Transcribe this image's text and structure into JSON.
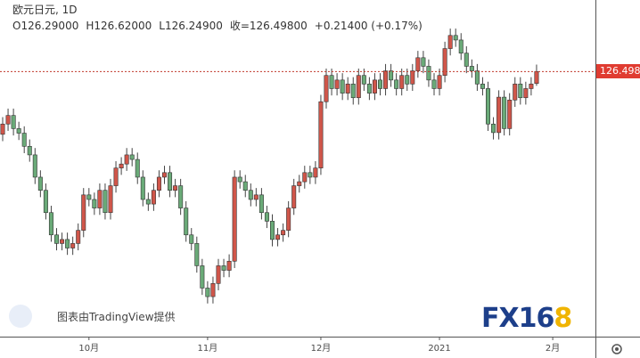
{
  "header": {
    "title": "欧元日元, 1D",
    "open": "O126.29000",
    "high": "H126.62000",
    "low": "L126.24900",
    "close": "收=126.49800",
    "change": "+0.21400 (+0.17%)"
  },
  "watermark": {
    "provider": "图表由TradingView提供",
    "brand_main": "FX16",
    "brand_end": "8"
  },
  "chart_data": {
    "type": "candlestick",
    "price_label": "126.498",
    "up_color": "#d0564a",
    "down_color": "#6aaa78",
    "ylim": [
      121.86,
      127.75
    ],
    "categories": [
      null,
      null,
      null,
      null,
      null,
      null,
      null,
      null,
      null,
      null,
      null,
      null,
      null,
      null,
      null,
      null,
      "10月",
      null,
      null,
      null,
      null,
      null,
      null,
      null,
      null,
      null,
      null,
      null,
      null,
      null,
      null,
      null,
      null,
      null,
      null,
      null,
      null,
      null,
      "11月",
      null,
      null,
      null,
      null,
      null,
      null,
      null,
      null,
      null,
      null,
      null,
      null,
      null,
      null,
      null,
      null,
      null,
      null,
      null,
      null,
      "12月",
      null,
      null,
      null,
      null,
      null,
      null,
      null,
      null,
      null,
      null,
      null,
      null,
      null,
      null,
      null,
      null,
      null,
      null,
      null,
      null,
      null,
      "2021",
      null,
      null,
      null,
      null,
      null,
      null,
      null,
      null,
      null,
      null,
      null,
      null,
      null,
      null,
      null,
      null,
      null,
      null,
      null,
      null,
      "2月"
    ],
    "open": [
      125.4,
      125.58,
      125.73,
      125.5,
      125.42,
      125.19,
      125.04,
      124.65,
      124.42,
      124.03,
      123.64,
      123.49,
      123.56,
      123.41,
      123.49,
      123.72,
      124.34,
      124.26,
      124.11,
      124.42,
      124.03,
      124.5,
      124.81,
      124.88,
      125.04,
      124.96,
      124.65,
      124.26,
      124.18,
      124.42,
      124.65,
      124.73,
      124.42,
      124.5,
      124.11,
      123.64,
      123.49,
      123.1,
      122.71,
      122.56,
      122.79,
      123.1,
      123.02,
      123.18,
      124.65,
      124.57,
      124.42,
      124.26,
      124.34,
      124.03,
      123.88,
      123.56,
      123.64,
      123.72,
      124.11,
      124.5,
      124.57,
      124.73,
      124.65,
      124.81,
      125.97,
      126.43,
      126.2,
      126.35,
      126.12,
      126.28,
      126.04,
      126.43,
      126.28,
      126.12,
      126.35,
      126.2,
      126.51,
      126.35,
      126.2,
      126.43,
      126.28,
      126.51,
      126.74,
      126.59,
      126.35,
      126.2,
      126.43,
      126.9,
      127.13,
      127.05,
      126.82,
      126.59,
      126.51,
      126.28,
      126.2,
      125.58,
      125.43,
      126.05,
      125.5,
      126.0,
      126.28,
      126.04,
      126.2,
      126.29,
      null,
      null,
      null
    ],
    "high": [
      125.7,
      125.85,
      125.85,
      125.62,
      125.54,
      125.31,
      125.16,
      124.77,
      124.54,
      124.15,
      123.76,
      123.68,
      123.68,
      123.61,
      123.84,
      124.46,
      124.46,
      124.38,
      124.54,
      124.54,
      124.62,
      124.93,
      125.0,
      125.16,
      125.16,
      125.08,
      124.77,
      124.38,
      124.54,
      124.77,
      124.85,
      124.85,
      124.62,
      124.62,
      124.23,
      123.76,
      123.61,
      123.22,
      122.83,
      122.91,
      123.22,
      123.22,
      123.3,
      124.77,
      124.77,
      124.69,
      124.54,
      124.46,
      124.46,
      124.15,
      124.0,
      123.76,
      123.84,
      124.23,
      124.62,
      124.69,
      124.85,
      124.85,
      124.93,
      126.09,
      126.55,
      126.55,
      126.47,
      126.47,
      126.4,
      126.4,
      126.55,
      126.55,
      126.4,
      126.47,
      126.47,
      126.63,
      126.63,
      126.47,
      126.55,
      126.55,
      126.63,
      126.86,
      126.86,
      126.71,
      126.47,
      126.55,
      127.02,
      127.25,
      127.25,
      127.17,
      126.94,
      126.71,
      126.63,
      126.4,
      126.32,
      125.7,
      126.17,
      126.17,
      126.12,
      126.4,
      126.4,
      126.32,
      126.4,
      126.62,
      null,
      null,
      null
    ],
    "low": [
      125.28,
      125.46,
      125.38,
      125.3,
      125.07,
      124.92,
      124.53,
      124.3,
      123.91,
      123.52,
      123.37,
      123.37,
      123.29,
      123.29,
      123.37,
      123.6,
      124.14,
      123.99,
      123.99,
      123.91,
      123.91,
      124.38,
      124.69,
      124.76,
      124.84,
      124.53,
      124.14,
      124.06,
      124.06,
      124.3,
      124.53,
      124.3,
      124.3,
      123.99,
      123.52,
      123.37,
      122.98,
      122.59,
      122.44,
      122.44,
      122.67,
      122.9,
      122.9,
      123.06,
      124.45,
      124.3,
      124.14,
      124.14,
      123.91,
      123.76,
      123.44,
      123.44,
      123.52,
      123.6,
      123.99,
      124.38,
      124.45,
      124.53,
      124.53,
      124.69,
      125.85,
      126.08,
      126.08,
      126.0,
      126.0,
      125.92,
      125.92,
      126.16,
      126.0,
      126.0,
      126.08,
      126.08,
      126.23,
      126.08,
      126.08,
      126.16,
      126.16,
      126.39,
      126.47,
      126.23,
      126.08,
      126.08,
      126.31,
      126.78,
      126.93,
      126.7,
      126.47,
      126.39,
      126.16,
      126.08,
      125.46,
      125.31,
      125.31,
      125.38,
      125.38,
      125.88,
      125.92,
      125.92,
      126.08,
      126.249,
      null,
      null,
      null
    ],
    "close": [
      125.58,
      125.73,
      125.5,
      125.42,
      125.19,
      125.04,
      124.65,
      124.42,
      124.03,
      123.64,
      123.49,
      123.56,
      123.41,
      123.49,
      123.72,
      124.34,
      124.26,
      124.11,
      124.42,
      124.03,
      124.5,
      124.81,
      124.88,
      125.04,
      124.96,
      124.65,
      124.26,
      124.18,
      124.42,
      124.65,
      124.73,
      124.42,
      124.5,
      124.11,
      123.64,
      123.49,
      123.1,
      122.71,
      122.56,
      122.79,
      123.1,
      123.02,
      123.18,
      124.65,
      124.57,
      124.42,
      124.26,
      124.34,
      124.03,
      123.88,
      123.56,
      123.64,
      123.72,
      124.11,
      124.5,
      124.57,
      124.73,
      124.65,
      124.81,
      125.97,
      126.43,
      126.2,
      126.35,
      126.12,
      126.28,
      126.04,
      126.43,
      126.28,
      126.12,
      126.35,
      126.2,
      126.51,
      126.35,
      126.2,
      126.43,
      126.28,
      126.51,
      126.74,
      126.59,
      126.35,
      126.2,
      126.43,
      126.9,
      127.13,
      127.05,
      126.82,
      126.59,
      126.51,
      126.28,
      126.2,
      125.58,
      125.43,
      126.05,
      125.5,
      126.0,
      126.28,
      126.04,
      126.2,
      126.28,
      126.498,
      null,
      null,
      null
    ]
  }
}
